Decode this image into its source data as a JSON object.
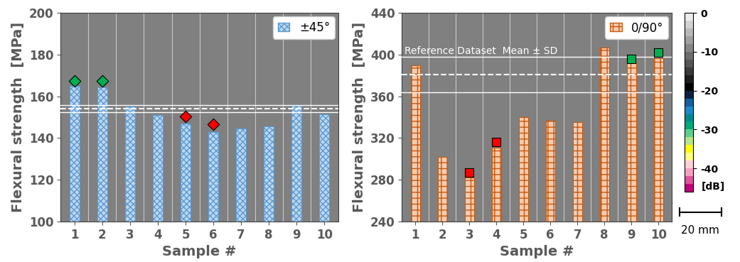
{
  "chart_data": [
    {
      "type": "bar",
      "xlabel": "Sample #",
      "ylabel": "Flexural strength  [MPa]",
      "x": [
        1,
        2,
        3,
        4,
        5,
        6,
        7,
        8,
        9,
        10
      ],
      "xlim": [
        0.5,
        10.5
      ],
      "xticks": [
        1,
        2,
        3,
        4,
        5,
        6,
        7,
        8,
        9,
        10
      ],
      "ylim": [
        100,
        200
      ],
      "yticks": [
        100,
        120,
        140,
        160,
        180,
        200
      ],
      "legend": "upper right",
      "reference": {
        "mean": 154.2,
        "sd": 1.6
      },
      "series": [
        {
          "name": "±45°",
          "type": "bar",
          "color": "#bdd7ee",
          "values": [
            165,
            164.5,
            155,
            151,
            147,
            143,
            144.5,
            145.5,
            155.5,
            151.5
          ]
        },
        {
          "type": "scatter",
          "marker": "diamond",
          "color": "#00b050",
          "x": [
            1,
            2
          ],
          "values": [
            167.5,
            167.5
          ]
        },
        {
          "type": "scatter",
          "marker": "diamond",
          "color": "#ff0000",
          "x": [
            5,
            6
          ],
          "values": [
            150.5,
            146.5
          ]
        }
      ]
    },
    {
      "type": "bar",
      "xlabel": "Sample #",
      "ylabel": "Flexural strength  [MPa]",
      "x": [
        1,
        2,
        3,
        4,
        5,
        6,
        7,
        8,
        9,
        10
      ],
      "xlim": [
        0.5,
        10.5
      ],
      "xticks": [
        1,
        2,
        3,
        4,
        5,
        6,
        7,
        8,
        9,
        10
      ],
      "ylim": [
        240,
        440
      ],
      "yticks": [
        240,
        280,
        320,
        360,
        400,
        440
      ],
      "legend": "upper right",
      "reference": {
        "label": "Reference Dataset  Mean ± SD",
        "mean": 381,
        "sd": 17
      },
      "series": [
        {
          "name": "0/90°",
          "type": "bar",
          "color": "#f8cbad",
          "values": [
            390,
            302,
            282,
            311,
            340,
            337,
            335,
            407,
            393,
            397
          ]
        },
        {
          "type": "scatter",
          "marker": "square",
          "color": "#ff0000",
          "x": [
            3,
            4
          ],
          "values": [
            287,
            316
          ]
        },
        {
          "type": "scatter",
          "marker": "square",
          "color": "#00b050",
          "x": [
            9,
            10
          ],
          "values": [
            396,
            402
          ]
        }
      ]
    }
  ],
  "colorbar": {
    "label": "[dB]",
    "clim": [
      -46,
      0
    ],
    "ticks": [
      0,
      -10,
      -20,
      -30,
      -40
    ],
    "colors": [
      "#c0007a",
      "#e0529a",
      "#f5a0c0",
      "#ffd0d8",
      "#ffff80",
      "#ffff00",
      "#b8e68a",
      "#5ccf8c",
      "#00a878",
      "#008c8c",
      "#1e88c8",
      "#1460a0",
      "#102040",
      "#000000",
      "#1e1e1e",
      "#3a3a3a",
      "#555555",
      "#6e6e6e",
      "#878787",
      "#a0a0a0",
      "#b9b9b9",
      "#d2d2d2",
      "#ececec"
    ]
  },
  "scale_bar": "20 mm"
}
